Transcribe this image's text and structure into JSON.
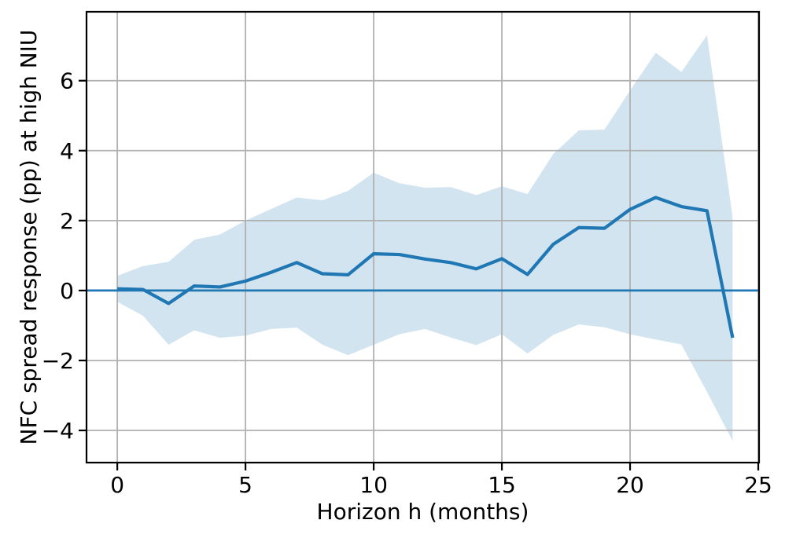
{
  "figure": {
    "xlabel": "Horizon h (months)",
    "ylabel": "NFC spread response (pp) at high NIU"
  },
  "chart_data": {
    "type": "line",
    "title": "",
    "xlabel": "Horizon h (months)",
    "ylabel": "NFC spread response (pp) at high NIU",
    "x": [
      0,
      1,
      2,
      3,
      4,
      5,
      6,
      7,
      8,
      9,
      10,
      11,
      12,
      13,
      14,
      15,
      16,
      17,
      18,
      19,
      20,
      21,
      22,
      23,
      24
    ],
    "series": [
      {
        "name": "NFC spread response point estimate",
        "role": "line",
        "values": [
          0.05,
          0.03,
          -0.37,
          0.13,
          0.1,
          0.27,
          0.52,
          0.8,
          0.48,
          0.45,
          1.05,
          1.03,
          0.9,
          0.8,
          0.62,
          0.91,
          0.46,
          1.32,
          1.8,
          1.78,
          2.32,
          2.66,
          2.4,
          2.28,
          -1.35
        ]
      },
      {
        "name": "confidence band upper",
        "role": "band-upper",
        "values": [
          0.42,
          0.7,
          0.82,
          1.45,
          1.6,
          2.0,
          2.33,
          2.66,
          2.58,
          2.85,
          3.37,
          3.07,
          2.94,
          2.96,
          2.73,
          2.98,
          2.76,
          3.9,
          4.58,
          4.6,
          5.72,
          6.8,
          6.25,
          7.3,
          2.1
        ]
      },
      {
        "name": "confidence band lower",
        "role": "band-lower",
        "values": [
          -0.32,
          -0.72,
          -1.55,
          -1.14,
          -1.35,
          -1.29,
          -1.1,
          -1.06,
          -1.55,
          -1.85,
          -1.55,
          -1.25,
          -1.1,
          -1.34,
          -1.56,
          -1.25,
          -1.8,
          -1.27,
          -0.97,
          -1.05,
          -1.25,
          -1.4,
          -1.54,
          -2.9,
          -4.3
        ]
      }
    ],
    "zero_line": 0,
    "grid": true,
    "legend": null,
    "xticks": [
      0,
      5,
      10,
      15,
      20,
      25
    ],
    "yticks": [
      -4,
      -2,
      0,
      2,
      4,
      6
    ],
    "xtick_labels": [
      "0",
      "5",
      "10",
      "15",
      "20",
      "25"
    ],
    "ytick_labels": [
      "−4",
      "−2",
      "0",
      "2",
      "4",
      "6"
    ],
    "xlim": [
      -1.2,
      25.03
    ],
    "ylim": [
      -4.92,
      7.97
    ],
    "colors": {
      "line": "#1f77b4",
      "band": "#d2e4f0",
      "zero_line": "#1f77b4",
      "grid": "#b0b0b0",
      "spine": "#000000",
      "tick": "#000000",
      "text": "#000000",
      "background": "#ffffff"
    }
  }
}
